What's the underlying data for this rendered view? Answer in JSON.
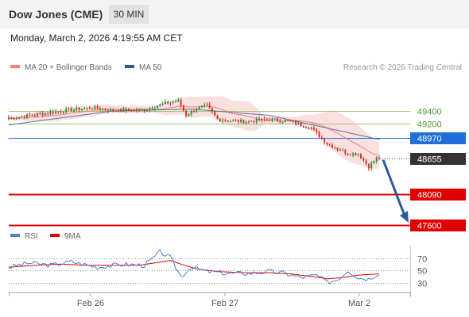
{
  "header": {
    "title": "Dow Jones (CME)",
    "timeframe": "30 MIN"
  },
  "datetime": "Monday, March 2, 2026 4:19:55 AM CET",
  "legend": {
    "ma20_label": "MA 20 + Bollinger Bands",
    "ma50_label": "MA 50",
    "rsi_label": "RSI",
    "ma9_label": "9MA"
  },
  "credit": "Research © 2026 Trading Central",
  "colors": {
    "ma20": "#f08080",
    "ma50": "#2e5a9c",
    "bands": "#f9d5d5",
    "bull": "#2e8b3e",
    "bear": "#d93025",
    "resistance": "#9ccc65",
    "pivot": "#1e6fd9",
    "support": "#e00000",
    "last": "#333333",
    "arrow": "#2e5a9c",
    "rsi": "#4a7fd4",
    "rsi_ma": "#e00000"
  },
  "chart_data": [
    {
      "type": "candlestick",
      "x_ticks": [
        "Feb 26",
        "Feb 27",
        "Mar 2"
      ],
      "ylim": [
        47500,
        50000
      ],
      "levels": [
        {
          "label": "49400",
          "value": 49400,
          "kind": "resistance"
        },
        {
          "label": "49200",
          "value": 49200,
          "kind": "resistance"
        },
        {
          "label": "48970",
          "value": 48970,
          "kind": "pivot"
        },
        {
          "label": "48655",
          "value": 48655,
          "kind": "last"
        },
        {
          "label": "48090",
          "value": 48090,
          "kind": "support"
        },
        {
          "label": "47600",
          "value": 47600,
          "kind": "support"
        }
      ],
      "last_price": 48655,
      "forecast_target": 47600,
      "anchors": [
        [
          0,
          49280
        ],
        [
          10,
          49340
        ],
        [
          22,
          49410
        ],
        [
          32,
          49450
        ],
        [
          40,
          49410
        ],
        [
          52,
          49420
        ],
        [
          60,
          49520
        ],
        [
          65,
          49560
        ],
        [
          68,
          49330
        ],
        [
          72,
          49440
        ],
        [
          76,
          49480
        ],
        [
          80,
          49270
        ],
        [
          90,
          49230
        ],
        [
          100,
          49270
        ],
        [
          108,
          49230
        ],
        [
          116,
          49130
        ],
        [
          122,
          48880
        ],
        [
          130,
          48730
        ],
        [
          134,
          48720
        ],
        [
          138,
          48520
        ],
        [
          142,
          48700
        ]
      ],
      "ma50_anchors": [
        [
          0,
          49180
        ],
        [
          40,
          49400
        ],
        [
          70,
          49430
        ],
        [
          100,
          49330
        ],
        [
          142,
          48950
        ]
      ],
      "series": [
        {
          "name": "MA 20 + Bollinger Bands"
        },
        {
          "name": "MA 50"
        }
      ]
    },
    {
      "type": "line",
      "ylim": [
        10,
        90
      ],
      "y_ticks": [
        {
          "label": "70",
          "value": 70
        },
        {
          "label": "50",
          "value": 50
        },
        {
          "label": "30",
          "value": 30
        }
      ],
      "series": [
        {
          "name": "RSI",
          "anchors": [
            [
              0,
              55
            ],
            [
              8,
              62
            ],
            [
              16,
              58
            ],
            [
              24,
              64
            ],
            [
              34,
              55
            ],
            [
              44,
              60
            ],
            [
              52,
              58
            ],
            [
              56,
              72
            ],
            [
              58,
              80
            ],
            [
              62,
              70
            ],
            [
              66,
              40
            ],
            [
              70,
              55
            ],
            [
              76,
              48
            ],
            [
              84,
              45
            ],
            [
              92,
              45
            ],
            [
              100,
              48
            ],
            [
              106,
              45
            ],
            [
              112,
              38
            ],
            [
              118,
              42
            ],
            [
              122,
              30
            ],
            [
              126,
              35
            ],
            [
              130,
              50
            ],
            [
              134,
              38
            ],
            [
              138,
              36
            ],
            [
              142,
              46
            ]
          ]
        },
        {
          "name": "9MA",
          "anchors": [
            [
              0,
              55
            ],
            [
              10,
              58
            ],
            [
              20,
              60
            ],
            [
              30,
              58
            ],
            [
              40,
              58
            ],
            [
              50,
              58
            ],
            [
              56,
              62
            ],
            [
              62,
              66
            ],
            [
              66,
              60
            ],
            [
              72,
              52
            ],
            [
              80,
              48
            ],
            [
              90,
              46
            ],
            [
              100,
              46
            ],
            [
              108,
              44
            ],
            [
              116,
              40
            ],
            [
              122,
              36
            ],
            [
              128,
              38
            ],
            [
              134,
              42
            ],
            [
              142,
              44
            ]
          ]
        }
      ]
    }
  ]
}
